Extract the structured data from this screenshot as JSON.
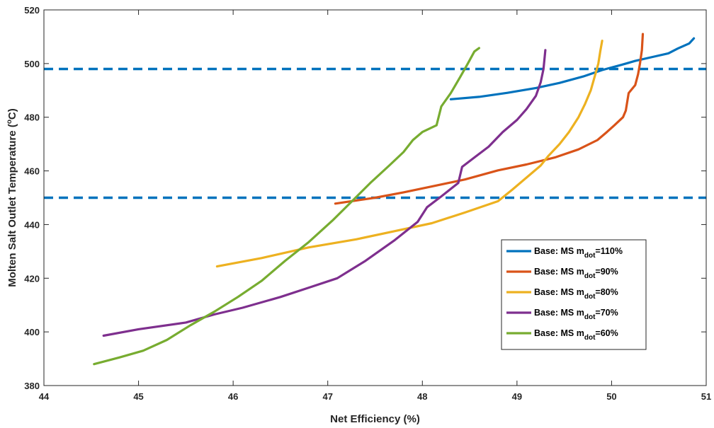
{
  "chart_data": {
    "type": "line",
    "title": "",
    "xlabel": "Net Efficiency (%)",
    "ylabel": "Molten Salt Outlet Temperature (°C)",
    "ylabel_parts": {
      "pre": "Molten Salt Outlet Temperature (",
      "sup": "o",
      "post": "C)"
    },
    "xlim": [
      44,
      51
    ],
    "ylim": [
      380,
      520
    ],
    "xticks": [
      44,
      45,
      46,
      47,
      48,
      49,
      50,
      51
    ],
    "yticks": [
      380,
      400,
      420,
      440,
      460,
      480,
      500,
      520
    ],
    "grid": false,
    "legend_position": "lower-right",
    "reference_lines": [
      {
        "orientation": "horizontal",
        "y": 498,
        "style": "dashed",
        "color": "#0072BD"
      },
      {
        "orientation": "horizontal",
        "y": 450,
        "style": "dashed",
        "color": "#0072BD"
      }
    ],
    "series": [
      {
        "name": "Base: MS m_dot=110%",
        "legend": {
          "pre": "Base: MS m",
          "sub": "dot",
          "post": "=110%"
        },
        "color": "#0072BD",
        "points": [
          [
            48.3,
            486.7
          ],
          [
            48.6,
            487.6
          ],
          [
            48.9,
            489.1
          ],
          [
            49.2,
            490.9
          ],
          [
            49.45,
            492.8
          ],
          [
            49.7,
            495.2
          ],
          [
            49.9,
            497.6
          ],
          [
            50.1,
            499.5
          ],
          [
            50.25,
            501.0
          ],
          [
            50.45,
            502.6
          ],
          [
            50.6,
            503.8
          ],
          [
            50.7,
            505.6
          ],
          [
            50.82,
            507.5
          ],
          [
            50.87,
            509.4
          ]
        ]
      },
      {
        "name": "Base: MS m_dot=90%",
        "legend": {
          "pre": "Base: MS m",
          "sub": "dot",
          "post": "=90%"
        },
        "color": "#D95319",
        "points": [
          [
            47.08,
            447.8
          ],
          [
            47.5,
            450.0
          ],
          [
            47.8,
            452.0
          ],
          [
            48.1,
            454.2
          ],
          [
            48.45,
            456.8
          ],
          [
            48.8,
            460.2
          ],
          [
            49.1,
            462.4
          ],
          [
            49.4,
            465.0
          ],
          [
            49.65,
            468.0
          ],
          [
            49.85,
            471.5
          ],
          [
            49.95,
            474.5
          ],
          [
            50.03,
            477.0
          ],
          [
            50.12,
            480.0
          ],
          [
            50.15,
            482.5
          ],
          [
            50.18,
            489.0
          ],
          [
            50.25,
            492.0
          ],
          [
            50.28,
            496.0
          ],
          [
            50.3,
            500.0
          ],
          [
            50.32,
            505.0
          ],
          [
            50.33,
            511.0
          ]
        ]
      },
      {
        "name": "Base: MS m_dot=80%",
        "legend": {
          "pre": "Base: MS m",
          "sub": "dot",
          "post": "=80%"
        },
        "color": "#EDB120",
        "points": [
          [
            45.83,
            424.4
          ],
          [
            46.3,
            427.5
          ],
          [
            46.8,
            431.5
          ],
          [
            47.3,
            434.5
          ],
          [
            47.7,
            437.5
          ],
          [
            48.1,
            440.5
          ],
          [
            48.45,
            444.5
          ],
          [
            48.8,
            448.7
          ],
          [
            48.95,
            453.0
          ],
          [
            49.1,
            457.5
          ],
          [
            49.25,
            462.0
          ],
          [
            49.33,
            465.5
          ],
          [
            49.45,
            470.0
          ],
          [
            49.55,
            474.5
          ],
          [
            49.65,
            480.0
          ],
          [
            49.72,
            485.0
          ],
          [
            49.78,
            490.0
          ],
          [
            49.82,
            495.0
          ],
          [
            49.86,
            500.0
          ],
          [
            49.88,
            504.5
          ],
          [
            49.9,
            508.5
          ]
        ]
      },
      {
        "name": "Base: MS m_dot=70%",
        "legend": {
          "pre": "Base: MS m",
          "sub": "dot",
          "post": "=70%"
        },
        "color": "#7E2F8E",
        "points": [
          [
            44.63,
            398.6
          ],
          [
            45.0,
            401.0
          ],
          [
            45.5,
            403.5
          ],
          [
            45.8,
            406.5
          ],
          [
            46.1,
            409.0
          ],
          [
            46.5,
            413.0
          ],
          [
            46.8,
            416.5
          ],
          [
            47.1,
            420.0
          ],
          [
            47.4,
            426.5
          ],
          [
            47.7,
            434.0
          ],
          [
            47.95,
            441.0
          ],
          [
            48.05,
            446.5
          ],
          [
            48.2,
            450.5
          ],
          [
            48.38,
            455.5
          ],
          [
            48.42,
            461.5
          ],
          [
            48.55,
            465.0
          ],
          [
            48.7,
            469.0
          ],
          [
            48.85,
            474.5
          ],
          [
            49.0,
            479.0
          ],
          [
            49.1,
            483.0
          ],
          [
            49.2,
            488.0
          ],
          [
            49.25,
            493.0
          ],
          [
            49.28,
            498.0
          ],
          [
            49.3,
            505.0
          ]
        ]
      },
      {
        "name": "Base: MS m_dot=60%",
        "legend": {
          "pre": "Base: MS m",
          "sub": "dot",
          "post": "=60%"
        },
        "color": "#77AC30",
        "points": [
          [
            44.53,
            388.0
          ],
          [
            44.8,
            390.5
          ],
          [
            45.05,
            393.0
          ],
          [
            45.3,
            397.0
          ],
          [
            45.55,
            402.5
          ],
          [
            45.8,
            407.5
          ],
          [
            46.05,
            413.0
          ],
          [
            46.3,
            419.0
          ],
          [
            46.55,
            426.5
          ],
          [
            46.8,
            433.5
          ],
          [
            47.05,
            441.5
          ],
          [
            47.25,
            448.5
          ],
          [
            47.45,
            455.5
          ],
          [
            47.65,
            462.0
          ],
          [
            47.8,
            467.0
          ],
          [
            47.9,
            471.5
          ],
          [
            48.0,
            474.5
          ],
          [
            48.15,
            477.0
          ],
          [
            48.2,
            484.0
          ],
          [
            48.3,
            489.0
          ],
          [
            48.4,
            495.0
          ],
          [
            48.48,
            500.0
          ],
          [
            48.55,
            504.5
          ],
          [
            48.6,
            505.8
          ]
        ]
      }
    ]
  }
}
